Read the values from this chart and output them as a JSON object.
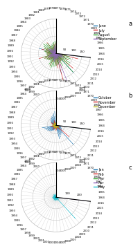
{
  "charts": [
    {
      "label": "a",
      "legend": [
        "June",
        "July",
        "August",
        "September"
      ],
      "colors": [
        "#1f77b4",
        "#d62728",
        "#2ca02c",
        "#9467bd"
      ],
      "max_r": 200,
      "r_ticks": [
        50,
        100,
        150
      ],
      "r_tick_labels": [
        "50",
        "100",
        "150"
      ]
    },
    {
      "label": "b",
      "legend": [
        "October",
        "November",
        "December"
      ],
      "colors": [
        "#1f77b4",
        "#d62728",
        "#bcbd22"
      ],
      "max_r": 200,
      "r_ticks": [
        50,
        100,
        150
      ],
      "r_tick_labels": [
        "50",
        "100",
        "150"
      ]
    },
    {
      "label": "c",
      "legend": [
        "Jan",
        "Feb",
        "Mar",
        "Apr",
        "May"
      ],
      "colors": [
        "#1f77b4",
        "#d62728",
        "#2ca02c",
        "#9467bd",
        "#17becf"
      ],
      "max_r": 300,
      "r_ticks": [
        100,
        200
      ],
      "r_tick_labels": [
        "100",
        "200"
      ]
    }
  ],
  "years": [
    1964,
    1965,
    1966,
    1967,
    1968,
    1969,
    1970,
    1971,
    1972,
    1973,
    1974,
    1975,
    1976,
    1977,
    1978,
    1979,
    1980,
    1981,
    1982,
    1983,
    1984,
    1985,
    1986,
    1987,
    1988,
    1989,
    1990,
    1991,
    1992,
    1993,
    1994,
    1995,
    1996,
    1997,
    1998,
    1999,
    2000,
    2001,
    2002,
    2003,
    2004,
    2005,
    2006,
    2007,
    2008,
    2009,
    2010,
    2011,
    2012,
    2013,
    2014,
    2015,
    2016
  ],
  "data_a": {
    "June": [
      20,
      15,
      10,
      5,
      30,
      25,
      20,
      15,
      40,
      35,
      30,
      25,
      10,
      15,
      20,
      25,
      30,
      20,
      15,
      10,
      5,
      30,
      25,
      20,
      100,
      35,
      30,
      25,
      20,
      15,
      10,
      5,
      30,
      25,
      20,
      15,
      40,
      35,
      30,
      25,
      10,
      15,
      120,
      25,
      30,
      20,
      150,
      20,
      15,
      10,
      40,
      35,
      170
    ],
    "July": [
      40,
      35,
      80,
      50,
      30,
      60,
      70,
      85,
      60,
      55,
      50,
      45,
      100,
      70,
      60,
      55,
      50,
      40,
      35,
      80,
      50,
      30,
      60,
      70,
      85,
      60,
      55,
      50,
      45,
      100,
      70,
      60,
      55,
      50,
      40,
      35,
      80,
      50,
      30,
      60,
      70,
      85,
      160,
      90,
      55,
      50,
      45,
      130,
      35,
      80,
      50,
      130,
      70
    ],
    "August": [
      60,
      55,
      50,
      75,
      80,
      90,
      80,
      75,
      70,
      65,
      60,
      55,
      50,
      80,
      70,
      65,
      60,
      55,
      50,
      75,
      80,
      90,
      80,
      75,
      70,
      65,
      60,
      55,
      50,
      80,
      70,
      65,
      60,
      55,
      50,
      75,
      80,
      90,
      80,
      75,
      70,
      65,
      60,
      55,
      80,
      50,
      145,
      100,
      95,
      80,
      90,
      80,
      75
    ],
    "September": [
      30,
      25,
      20,
      35,
      40,
      50,
      40,
      35,
      30,
      25,
      20,
      35,
      40,
      45,
      50,
      40,
      35,
      30,
      25,
      20,
      35,
      40,
      50,
      40,
      35,
      30,
      25,
      20,
      35,
      40,
      50,
      40,
      35,
      30,
      25,
      20,
      35,
      40,
      50,
      40,
      35,
      30,
      25,
      170,
      30,
      25,
      20,
      35,
      40,
      50,
      40,
      35,
      130
    ]
  },
  "data_b": {
    "October": [
      80,
      70,
      60,
      55,
      50,
      45,
      40,
      35,
      30,
      25,
      20,
      15,
      10,
      5,
      80,
      70,
      60,
      55,
      50,
      45,
      40,
      35,
      30,
      25,
      20,
      15,
      10,
      5,
      80,
      70,
      60,
      55,
      50,
      45,
      40,
      35,
      30,
      25,
      20,
      15,
      10,
      5,
      80,
      70,
      60,
      55,
      150,
      45,
      40,
      35,
      30,
      25,
      170
    ],
    "November": [
      20,
      15,
      10,
      5,
      30,
      25,
      20,
      15,
      10,
      5,
      30,
      25,
      20,
      15,
      10,
      5,
      30,
      25,
      20,
      15,
      10,
      5,
      30,
      25,
      20,
      15,
      10,
      5,
      30,
      25,
      20,
      15,
      10,
      5,
      30,
      25,
      20,
      15,
      10,
      5,
      30,
      25,
      20,
      15,
      10,
      5,
      30,
      100,
      20,
      15,
      10,
      5,
      30
    ],
    "December": [
      5,
      10,
      15,
      20,
      5,
      10,
      15,
      20,
      5,
      10,
      15,
      20,
      5,
      10,
      15,
      20,
      5,
      10,
      15,
      20,
      5,
      10,
      15,
      20,
      5,
      10,
      15,
      20,
      5,
      10,
      15,
      20,
      5,
      10,
      15,
      20,
      5,
      10,
      15,
      20,
      5,
      10,
      15,
      20,
      5,
      10,
      15,
      20,
      5,
      10,
      15,
      20,
      5
    ]
  },
  "data_c": {
    "Jan": [
      5,
      10,
      15,
      5,
      10,
      5,
      5,
      10,
      5,
      10,
      5,
      5,
      10,
      5,
      10,
      5,
      10,
      5,
      5,
      10,
      5,
      10,
      5,
      5,
      10,
      5,
      5,
      10,
      5,
      5,
      10,
      5,
      5,
      10,
      5,
      5,
      10,
      5,
      5,
      10,
      5,
      5,
      10,
      5,
      5,
      10,
      5,
      5,
      10,
      5,
      5,
      10,
      5
    ],
    "Feb": [
      10,
      5,
      10,
      15,
      5,
      10,
      5,
      10,
      15,
      5,
      10,
      5,
      10,
      15,
      5,
      10,
      5,
      10,
      15,
      5,
      10,
      5,
      10,
      15,
      5,
      10,
      5,
      10,
      15,
      5,
      10,
      5,
      10,
      15,
      5,
      10,
      5,
      10,
      15,
      5,
      10,
      5,
      10,
      15,
      5,
      10,
      5,
      10,
      15,
      5,
      10,
      5,
      10
    ],
    "Mar": [
      5,
      10,
      5,
      5,
      10,
      5,
      5,
      10,
      5,
      5,
      10,
      5,
      5,
      10,
      5,
      5,
      10,
      5,
      5,
      10,
      5,
      5,
      10,
      5,
      5,
      10,
      5,
      5,
      10,
      5,
      5,
      10,
      5,
      5,
      10,
      5,
      5,
      10,
      5,
      5,
      10,
      5,
      5,
      10,
      5,
      5,
      10,
      5,
      5,
      10,
      5,
      5,
      10
    ],
    "Apr": [
      10,
      5,
      10,
      5,
      10,
      5,
      10,
      5,
      10,
      5,
      10,
      5,
      10,
      5,
      10,
      5,
      10,
      5,
      10,
      5,
      10,
      5,
      10,
      5,
      10,
      5,
      10,
      5,
      10,
      5,
      10,
      5,
      10,
      5,
      10,
      5,
      10,
      5,
      10,
      5,
      10,
      5,
      10,
      5,
      10,
      5,
      10,
      5,
      10,
      5,
      10,
      5,
      280
    ],
    "May": [
      20,
      15,
      25,
      30,
      20,
      15,
      25,
      30,
      20,
      15,
      25,
      290,
      20,
      15,
      25,
      30,
      20,
      15,
      25,
      30,
      20,
      15,
      25,
      30,
      20,
      15,
      25,
      30,
      20,
      15,
      25,
      30,
      20,
      15,
      25,
      30,
      20,
      15,
      25,
      30,
      20,
      15,
      25,
      30,
      20,
      15,
      250,
      30,
      20,
      15,
      25,
      30,
      20
    ]
  },
  "bg_color": "#ffffff",
  "grid_color": "#cccccc",
  "label_fontsize": 2.8,
  "legend_fontsize": 3.5,
  "r_label_fontsize": 3.0
}
